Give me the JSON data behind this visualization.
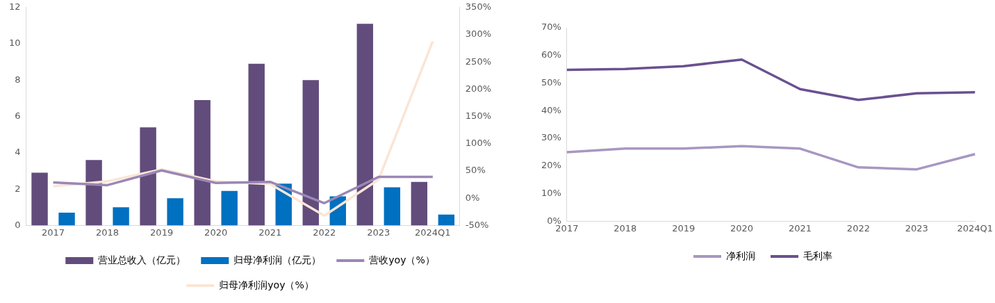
{
  "chart_data": [
    {
      "type": "bar",
      "categories": [
        "2017",
        "2018",
        "2019",
        "2020",
        "2021",
        "2022",
        "2023",
        "2024Q1"
      ],
      "series": [
        {
          "name": "营业总收入（亿元）",
          "color": "#614c7c",
          "values": [
            2.9,
            3.6,
            5.4,
            6.9,
            8.9,
            8.0,
            11.1,
            2.4
          ]
        },
        {
          "name": "归母净利润（亿元）",
          "color": "#0070c0",
          "values": [
            0.7,
            1.0,
            1.5,
            1.9,
            2.3,
            1.6,
            2.1,
            0.6
          ]
        },
        {
          "name": "营收yoy（%）",
          "type": "line",
          "axis": "y2",
          "color": "#9a87b5",
          "values": [
            29,
            24,
            51,
            28,
            30,
            -9,
            39,
            39
          ]
        },
        {
          "name": "归母净利润yoy（%）",
          "type": "line",
          "axis": "y2",
          "color": "#fbe5d6",
          "values": [
            22,
            31,
            53,
            31,
            26,
            -32,
            34,
            288
          ]
        }
      ],
      "ylim": [
        0,
        12
      ],
      "yticks": [
        0,
        2,
        4,
        6,
        8,
        10,
        12
      ],
      "y2lim": [
        -50,
        350
      ],
      "y2ticks": [
        {
          "value": -50,
          "label": "-50%"
        },
        {
          "value": 0,
          "label": "0%"
        },
        {
          "value": 50,
          "label": "50%"
        },
        {
          "value": 100,
          "label": "100%"
        },
        {
          "value": 150,
          "label": "150%"
        },
        {
          "value": 200,
          "label": "200%"
        },
        {
          "value": 250,
          "label": "250%"
        },
        {
          "value": 300,
          "label": "300%"
        },
        {
          "value": 350,
          "label": "350%"
        }
      ],
      "grid": false,
      "legend": "bottom",
      "marker": "none"
    },
    {
      "type": "line",
      "categories": [
        "2017",
        "2018",
        "2019",
        "2020",
        "2021",
        "2022",
        "2023",
        "2024Q1"
      ],
      "series": [
        {
          "name": "净利润",
          "color": "#a897c1",
          "values": [
            25.0,
            26.3,
            26.3,
            27.2,
            26.3,
            19.5,
            18.8,
            24.3
          ]
        },
        {
          "name": "毛利率",
          "color": "#6a5090",
          "values": [
            54.8,
            55.1,
            56.1,
            58.5,
            47.8,
            43.9,
            46.3,
            46.7
          ]
        }
      ],
      "ylim": [
        0,
        70
      ],
      "yticks": [
        {
          "value": 0,
          "label": "0%"
        },
        {
          "value": 10,
          "label": "10%"
        },
        {
          "value": 20,
          "label": "20%"
        },
        {
          "value": 30,
          "label": "30%"
        },
        {
          "value": 40,
          "label": "40%"
        },
        {
          "value": 50,
          "label": "50%"
        },
        {
          "value": 60,
          "label": "60%"
        },
        {
          "value": 70,
          "label": "70%"
        }
      ],
      "grid": false,
      "legend": "bottom",
      "marker": "none"
    }
  ]
}
